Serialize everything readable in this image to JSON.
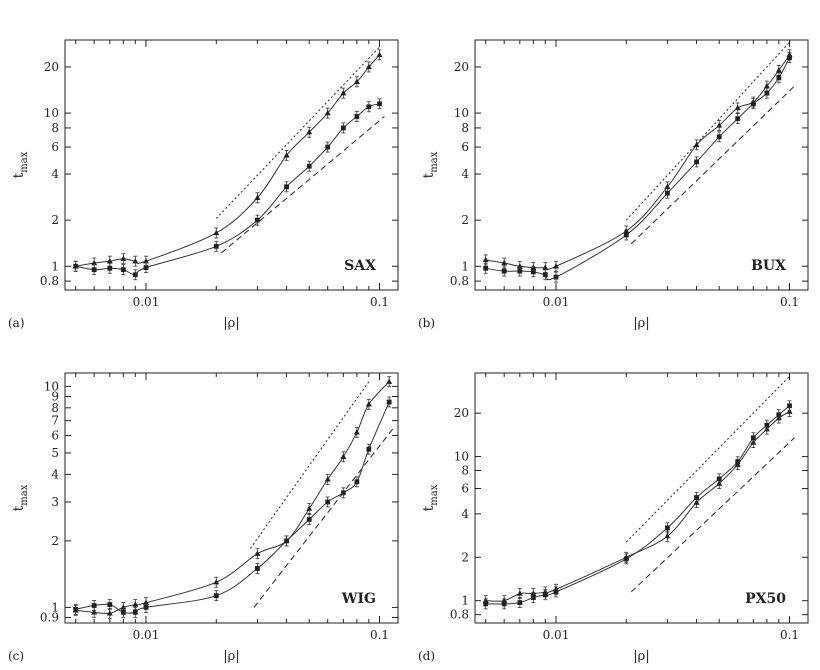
{
  "chart_data": [
    {
      "type": "line",
      "panel_label": "(a)",
      "name_label": "SAX",
      "xlabel": "|ρ|",
      "ylabel": "t",
      "ylabel_sub": "max",
      "xscale": "log",
      "yscale": "log",
      "xlim": [
        0.0045,
        0.12
      ],
      "ylim": [
        0.7,
        30
      ],
      "xticks": [
        {
          "v": 0.01,
          "label": "0.01"
        },
        {
          "v": 0.1,
          "label": "0.1"
        }
      ],
      "yticks": [
        {
          "v": 0.8,
          "label": "0.8"
        },
        {
          "v": 1,
          "label": "1"
        },
        {
          "v": 2,
          "label": "2"
        },
        {
          "v": 4,
          "label": "4"
        },
        {
          "v": 6,
          "label": "6"
        },
        {
          "v": 8,
          "label": "8"
        },
        {
          "v": 10,
          "label": "10"
        },
        {
          "v": 20,
          "label": "20"
        }
      ],
      "series": [
        {
          "marker": "triangle",
          "x": [
            0.005,
            0.006,
            0.007,
            0.008,
            0.009,
            0.01,
            0.02,
            0.03,
            0.04,
            0.05,
            0.06,
            0.07,
            0.08,
            0.09,
            0.1
          ],
          "y": [
            1.0,
            1.05,
            1.08,
            1.12,
            1.08,
            1.08,
            1.65,
            2.8,
            5.3,
            7.5,
            10.0,
            13.5,
            16.0,
            20.0,
            24.0
          ]
        },
        {
          "marker": "square",
          "x": [
            0.005,
            0.006,
            0.007,
            0.008,
            0.009,
            0.01,
            0.02,
            0.03,
            0.04,
            0.05,
            0.06,
            0.07,
            0.08,
            0.09,
            0.1
          ],
          "y": [
            1.0,
            0.95,
            0.97,
            0.95,
            0.88,
            0.98,
            1.35,
            2.0,
            3.3,
            4.5,
            6.0,
            8.0,
            9.5,
            11.0,
            11.5
          ]
        }
      ],
      "reference_lines": [
        {
          "style": "dotted",
          "x": [
            0.02,
            0.1
          ],
          "y": [
            2.05,
            27.0
          ]
        },
        {
          "style": "dashed",
          "x": [
            0.021,
            0.105
          ],
          "y": [
            1.22,
            9.5
          ]
        }
      ]
    },
    {
      "type": "line",
      "panel_label": "(b)",
      "name_label": "BUX",
      "xlabel": "|ρ|",
      "ylabel": "t",
      "ylabel_sub": "max",
      "xscale": "log",
      "yscale": "log",
      "xlim": [
        0.0045,
        0.12
      ],
      "ylim": [
        0.7,
        30
      ],
      "xticks": [
        {
          "v": 0.01,
          "label": "0.01"
        },
        {
          "v": 0.1,
          "label": "0.1"
        }
      ],
      "yticks": [
        {
          "v": 0.8,
          "label": "0.8"
        },
        {
          "v": 1,
          "label": "1"
        },
        {
          "v": 2,
          "label": "2"
        },
        {
          "v": 4,
          "label": "4"
        },
        {
          "v": 6,
          "label": "6"
        },
        {
          "v": 8,
          "label": "8"
        },
        {
          "v": 10,
          "label": "10"
        },
        {
          "v": 20,
          "label": "20"
        }
      ],
      "series": [
        {
          "marker": "triangle",
          "x": [
            0.005,
            0.006,
            0.007,
            0.008,
            0.009,
            0.01,
            0.02,
            0.03,
            0.04,
            0.05,
            0.06,
            0.07,
            0.08,
            0.09,
            0.1
          ],
          "y": [
            1.1,
            1.05,
            1.0,
            0.98,
            0.98,
            1.0,
            1.7,
            3.3,
            6.2,
            8.3,
            10.8,
            11.8,
            15.0,
            19.0,
            24.0
          ]
        },
        {
          "marker": "square",
          "x": [
            0.005,
            0.006,
            0.007,
            0.008,
            0.009,
            0.01,
            0.02,
            0.03,
            0.04,
            0.05,
            0.06,
            0.07,
            0.08,
            0.09,
            0.1
          ],
          "y": [
            0.97,
            0.93,
            0.93,
            0.92,
            0.88,
            0.85,
            1.6,
            3.0,
            4.8,
            7.0,
            9.2,
            11.5,
            13.5,
            17.0,
            23.0
          ]
        }
      ],
      "reference_lines": [
        {
          "style": "dotted",
          "x": [
            0.02,
            0.1
          ],
          "y": [
            2.0,
            29.0
          ]
        },
        {
          "style": "dashed",
          "x": [
            0.021,
            0.105
          ],
          "y": [
            1.4,
            15.0
          ]
        }
      ]
    },
    {
      "type": "line",
      "panel_label": "(c)",
      "name_label": "WIG",
      "xlabel": "|ρ|",
      "ylabel": "t",
      "ylabel_sub": "max",
      "xscale": "log",
      "yscale": "log",
      "xlim": [
        0.0045,
        0.12
      ],
      "ylim": [
        0.85,
        11.5
      ],
      "xticks": [
        {
          "v": 0.01,
          "label": "0.01"
        },
        {
          "v": 0.1,
          "label": "0.1"
        }
      ],
      "yticks": [
        {
          "v": 0.9,
          "label": "0.9"
        },
        {
          "v": 1,
          "label": "1"
        },
        {
          "v": 2,
          "label": "2"
        },
        {
          "v": 3,
          "label": "3"
        },
        {
          "v": 4,
          "label": "4"
        },
        {
          "v": 5,
          "label": "5"
        },
        {
          "v": 6,
          "label": "6"
        },
        {
          "v": 7,
          "label": "7"
        },
        {
          "v": 8,
          "label": "8"
        },
        {
          "v": 9,
          "label": "9"
        },
        {
          "v": 10,
          "label": "10"
        }
      ],
      "series": [
        {
          "marker": "triangle",
          "x": [
            0.005,
            0.006,
            0.007,
            0.008,
            0.009,
            0.01,
            0.02,
            0.03,
            0.04,
            0.05,
            0.06,
            0.07,
            0.08,
            0.09,
            0.11
          ],
          "y": [
            0.97,
            0.95,
            0.94,
            1.0,
            1.03,
            1.05,
            1.3,
            1.75,
            2.0,
            2.8,
            3.8,
            4.8,
            6.2,
            8.3,
            10.5
          ]
        },
        {
          "marker": "square",
          "x": [
            0.005,
            0.006,
            0.007,
            0.008,
            0.009,
            0.01,
            0.02,
            0.03,
            0.04,
            0.05,
            0.06,
            0.07,
            0.08,
            0.09,
            0.11
          ],
          "y": [
            0.98,
            1.02,
            1.03,
            0.95,
            0.95,
            1.0,
            1.13,
            1.5,
            2.0,
            2.5,
            3.0,
            3.3,
            3.7,
            5.2,
            8.5
          ]
        }
      ],
      "reference_lines": [
        {
          "style": "dotted",
          "x": [
            0.028,
            0.09
          ],
          "y": [
            1.85,
            10.5
          ]
        },
        {
          "style": "dashed",
          "x": [
            0.029,
            0.115
          ],
          "y": [
            1.0,
            6.5
          ]
        }
      ]
    },
    {
      "type": "line",
      "panel_label": "(d)",
      "name_label": "PX50",
      "xlabel": "|ρ|",
      "ylabel": "t",
      "ylabel_sub": "max",
      "xscale": "log",
      "yscale": "log",
      "xlim": [
        0.0045,
        0.12
      ],
      "ylim": [
        0.7,
        38
      ],
      "xticks": [
        {
          "v": 0.01,
          "label": "0.01"
        },
        {
          "v": 0.1,
          "label": "0.1"
        }
      ],
      "yticks": [
        {
          "v": 0.8,
          "label": "0.8"
        },
        {
          "v": 1,
          "label": "1"
        },
        {
          "v": 2,
          "label": "2"
        },
        {
          "v": 4,
          "label": "4"
        },
        {
          "v": 6,
          "label": "6"
        },
        {
          "v": 8,
          "label": "8"
        },
        {
          "v": 10,
          "label": "10"
        },
        {
          "v": 20,
          "label": "20"
        }
      ],
      "series": [
        {
          "marker": "triangle",
          "x": [
            0.005,
            0.006,
            0.007,
            0.008,
            0.009,
            0.01,
            0.02,
            0.03,
            0.04,
            0.05,
            0.06,
            0.07,
            0.08,
            0.09,
            0.1
          ],
          "y": [
            1.0,
            1.0,
            1.12,
            1.12,
            1.15,
            1.2,
            2.0,
            2.8,
            4.8,
            6.5,
            8.8,
            12.5,
            15.5,
            18.5,
            20.5
          ]
        },
        {
          "marker": "square",
          "x": [
            0.005,
            0.006,
            0.007,
            0.008,
            0.009,
            0.01,
            0.02,
            0.03,
            0.04,
            0.05,
            0.06,
            0.07,
            0.08,
            0.09,
            0.1
          ],
          "y": [
            0.95,
            0.95,
            0.97,
            1.05,
            1.1,
            1.15,
            1.95,
            3.2,
            5.2,
            7.0,
            9.2,
            13.5,
            16.5,
            19.5,
            22.5
          ]
        }
      ],
      "reference_lines": [
        {
          "style": "dotted",
          "x": [
            0.02,
            0.1
          ],
          "y": [
            2.55,
            36.0
          ]
        },
        {
          "style": "dashed",
          "x": [
            0.021,
            0.105
          ],
          "y": [
            1.15,
            13.5
          ]
        }
      ]
    }
  ]
}
